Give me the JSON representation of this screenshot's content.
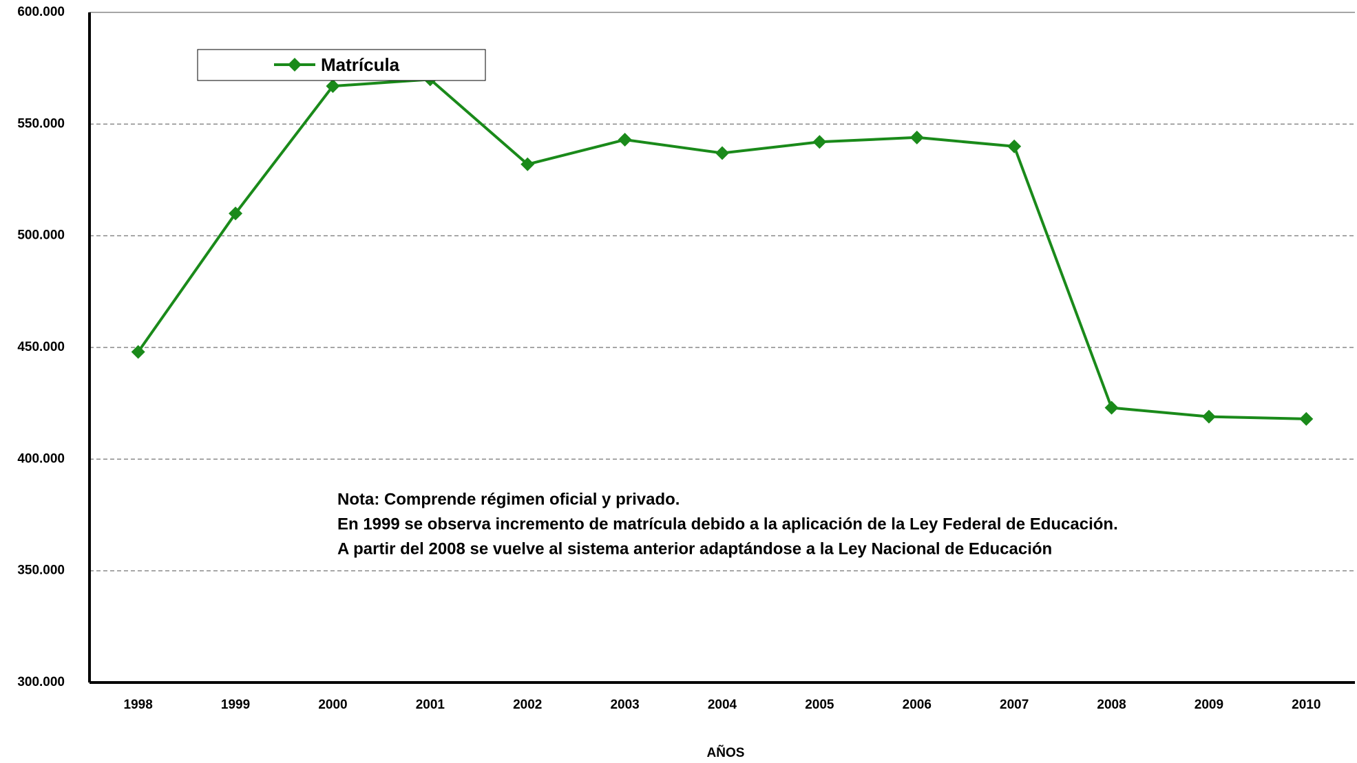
{
  "chart_data": {
    "type": "line",
    "x_label": "AÑOS",
    "categories": [
      "1998",
      "1999",
      "2000",
      "2001",
      "2002",
      "2003",
      "2004",
      "2005",
      "2006",
      "2007",
      "2008",
      "2009",
      "2010"
    ],
    "series": [
      {
        "name": "Matrícula",
        "color": "#1a8a1a",
        "values": [
          448000,
          510000,
          567000,
          570000,
          532000,
          543000,
          537000,
          542000,
          544000,
          540000,
          423000,
          419000,
          418000
        ]
      }
    ],
    "ylim": [
      300000,
      600000
    ],
    "yticks": [
      {
        "value": 300000,
        "label": "300.000"
      },
      {
        "value": 350000,
        "label": "350.000"
      },
      {
        "value": 400000,
        "label": "400.000"
      },
      {
        "value": 450000,
        "label": "450.000"
      },
      {
        "value": 500000,
        "label": "500.000"
      },
      {
        "value": 550000,
        "label": "550.000"
      },
      {
        "value": 600000,
        "label": "600.000"
      }
    ],
    "grid": true,
    "legend": "top-left",
    "annotations": [
      "Nota: Comprende régimen oficial y privado.",
      "En 1999 se observa incremento de matrícula  debido a la aplicación de la Ley Federal de Educación.",
      "A partir del 2008 se vuelve al sistema anterior adaptándose a la Ley Nacional de Educación"
    ]
  }
}
